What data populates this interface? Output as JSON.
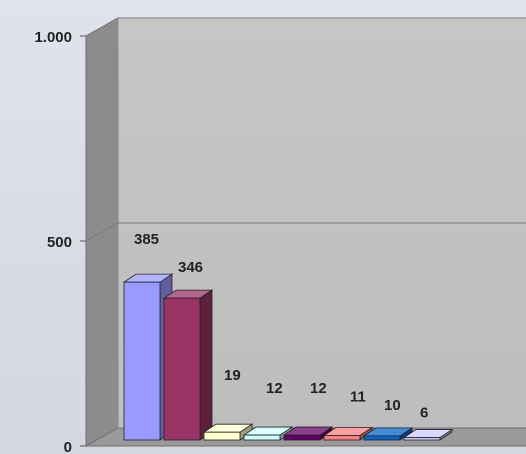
{
  "chart_data": {
    "type": "bar",
    "style": "3d-column",
    "categories": [
      "",
      "",
      "",
      "",
      "",
      "",
      "",
      ""
    ],
    "values": [
      385,
      346,
      19,
      12,
      12,
      11,
      10,
      6
    ],
    "data_labels": [
      "385",
      "346",
      "19",
      "12",
      "12",
      "11",
      "10",
      "6"
    ],
    "colors": [
      "#9999ff",
      "#993366",
      "#ffffcc",
      "#ccffff",
      "#660066",
      "#ff8080",
      "#0066cc",
      "#ccccff"
    ],
    "ylim": [
      0,
      1000
    ],
    "y_ticks": [
      {
        "value": 0,
        "label": "0"
      },
      {
        "value": 500,
        "label": "500"
      },
      {
        "value": 1000,
        "label": "1.000"
      }
    ],
    "grid": true,
    "title": "",
    "xlabel": "",
    "ylabel": ""
  }
}
